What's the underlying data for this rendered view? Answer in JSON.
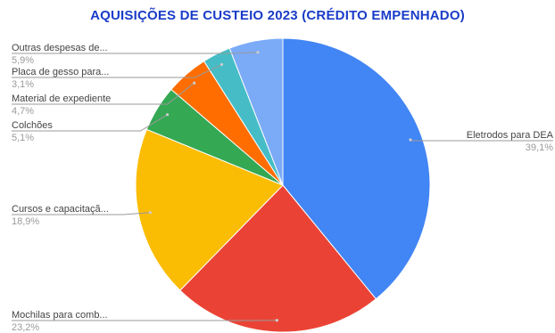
{
  "chart_data": {
    "type": "pie",
    "title": "AQUISIÇÕES DE CUSTEIO 2023 (CRÉDITO EMPENHADO)",
    "slices": [
      {
        "label": "Eletrodos para DEA",
        "percent_label": "39,1%",
        "value": 39.1,
        "color": "#4285f4"
      },
      {
        "label": "Mochilas para comb...",
        "percent_label": "23,2%",
        "value": 23.2,
        "color": "#ea4335"
      },
      {
        "label": "Cursos e capacitaçã...",
        "percent_label": "18,9%",
        "value": 18.9,
        "color": "#fbbc04"
      },
      {
        "label": "Colchões",
        "percent_label": "5,1%",
        "value": 5.1,
        "color": "#34a853"
      },
      {
        "label": "Material de expediente",
        "percent_label": "4,7%",
        "value": 4.7,
        "color": "#ff6d01"
      },
      {
        "label": "Placa de gesso para...",
        "percent_label": "3,1%",
        "value": 3.1,
        "color": "#46bdc6"
      },
      {
        "label": "Outras despesas de...",
        "percent_label": "5,9%",
        "value": 5.9,
        "color": "#7baaf7"
      }
    ]
  }
}
